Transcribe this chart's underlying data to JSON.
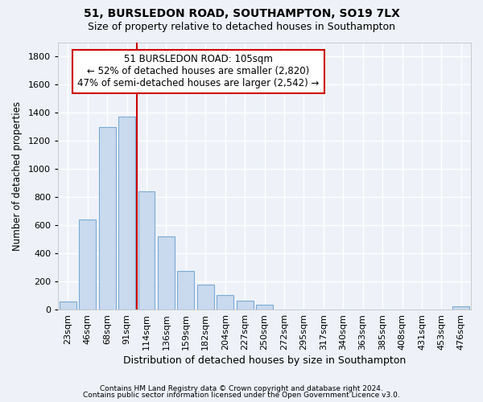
{
  "title1": "51, BURSLEDON ROAD, SOUTHAMPTON, SO19 7LX",
  "title2": "Size of property relative to detached houses in Southampton",
  "xlabel": "Distribution of detached houses by size in Southampton",
  "ylabel": "Number of detached properties",
  "categories": [
    "23sqm",
    "46sqm",
    "68sqm",
    "91sqm",
    "114sqm",
    "136sqm",
    "159sqm",
    "182sqm",
    "204sqm",
    "227sqm",
    "250sqm",
    "272sqm",
    "295sqm",
    "317sqm",
    "340sqm",
    "363sqm",
    "385sqm",
    "408sqm",
    "431sqm",
    "453sqm",
    "476sqm"
  ],
  "values": [
    55,
    640,
    1300,
    1370,
    840,
    520,
    275,
    175,
    105,
    65,
    35,
    0,
    0,
    0,
    0,
    0,
    0,
    0,
    0,
    0,
    22
  ],
  "bar_color": "#c9d9ee",
  "bar_edge_color": "#7aaad4",
  "vline_color": "#cc0000",
  "vline_pos": 3.5,
  "annotation_line1": "51 BURSLEDON ROAD: 105sqm",
  "annotation_line2": "← 52% of detached houses are smaller (2,820)",
  "annotation_line3": "47% of semi-detached houses are larger (2,542) →",
  "annotation_box_color": "#cc0000",
  "ylim": [
    0,
    1900
  ],
  "yticks": [
    0,
    200,
    400,
    600,
    800,
    1000,
    1200,
    1400,
    1600,
    1800
  ],
  "footer1": "Contains HM Land Registry data © Crown copyright and database right 2024.",
  "footer2": "Contains public sector information licensed under the Open Government Licence v3.0.",
  "bg_color": "#eef2f8",
  "grid_color": "#ffffff",
  "title1_fontsize": 10,
  "title2_fontsize": 9,
  "xlabel_fontsize": 9,
  "ylabel_fontsize": 8.5,
  "tick_fontsize": 8,
  "footer_fontsize": 6.5
}
